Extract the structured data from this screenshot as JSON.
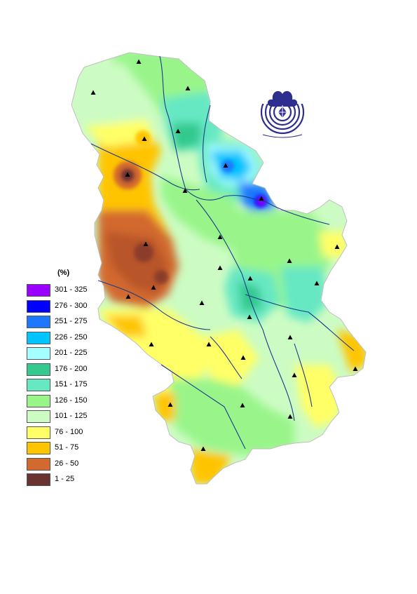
{
  "legend": {
    "title": "(%)",
    "classes": [
      {
        "label": "301 - 325",
        "color": "#9a00ff"
      },
      {
        "label": "276 - 300",
        "color": "#0000ff"
      },
      {
        "label": "251 - 275",
        "color": "#1e78ff"
      },
      {
        "label": "226 - 250",
        "color": "#00c4ff"
      },
      {
        "label": "201 - 225",
        "color": "#a6ffff"
      },
      {
        "label": "176 - 200",
        "color": "#33c98f"
      },
      {
        "label": "151 - 175",
        "color": "#66e8c3"
      },
      {
        "label": "126 - 150",
        "color": "#99f58a"
      },
      {
        "label": "101 - 125",
        "color": "#ccfcc3"
      },
      {
        "label": "76 - 100",
        "color": "#ffff66"
      },
      {
        "label": "51 - 75",
        "color": "#ffc400"
      },
      {
        "label": "26 - 50",
        "color": "#d2692e"
      },
      {
        "label": "1 - 25",
        "color": "#6b3232"
      }
    ]
  },
  "colors": {
    "river": "#1a3a8a",
    "station": "#000000",
    "logo": "#2e2e8f"
  },
  "logo": {
    "icon": "hydrometeorological-service-emblem"
  },
  "stations_count_note": ""
}
